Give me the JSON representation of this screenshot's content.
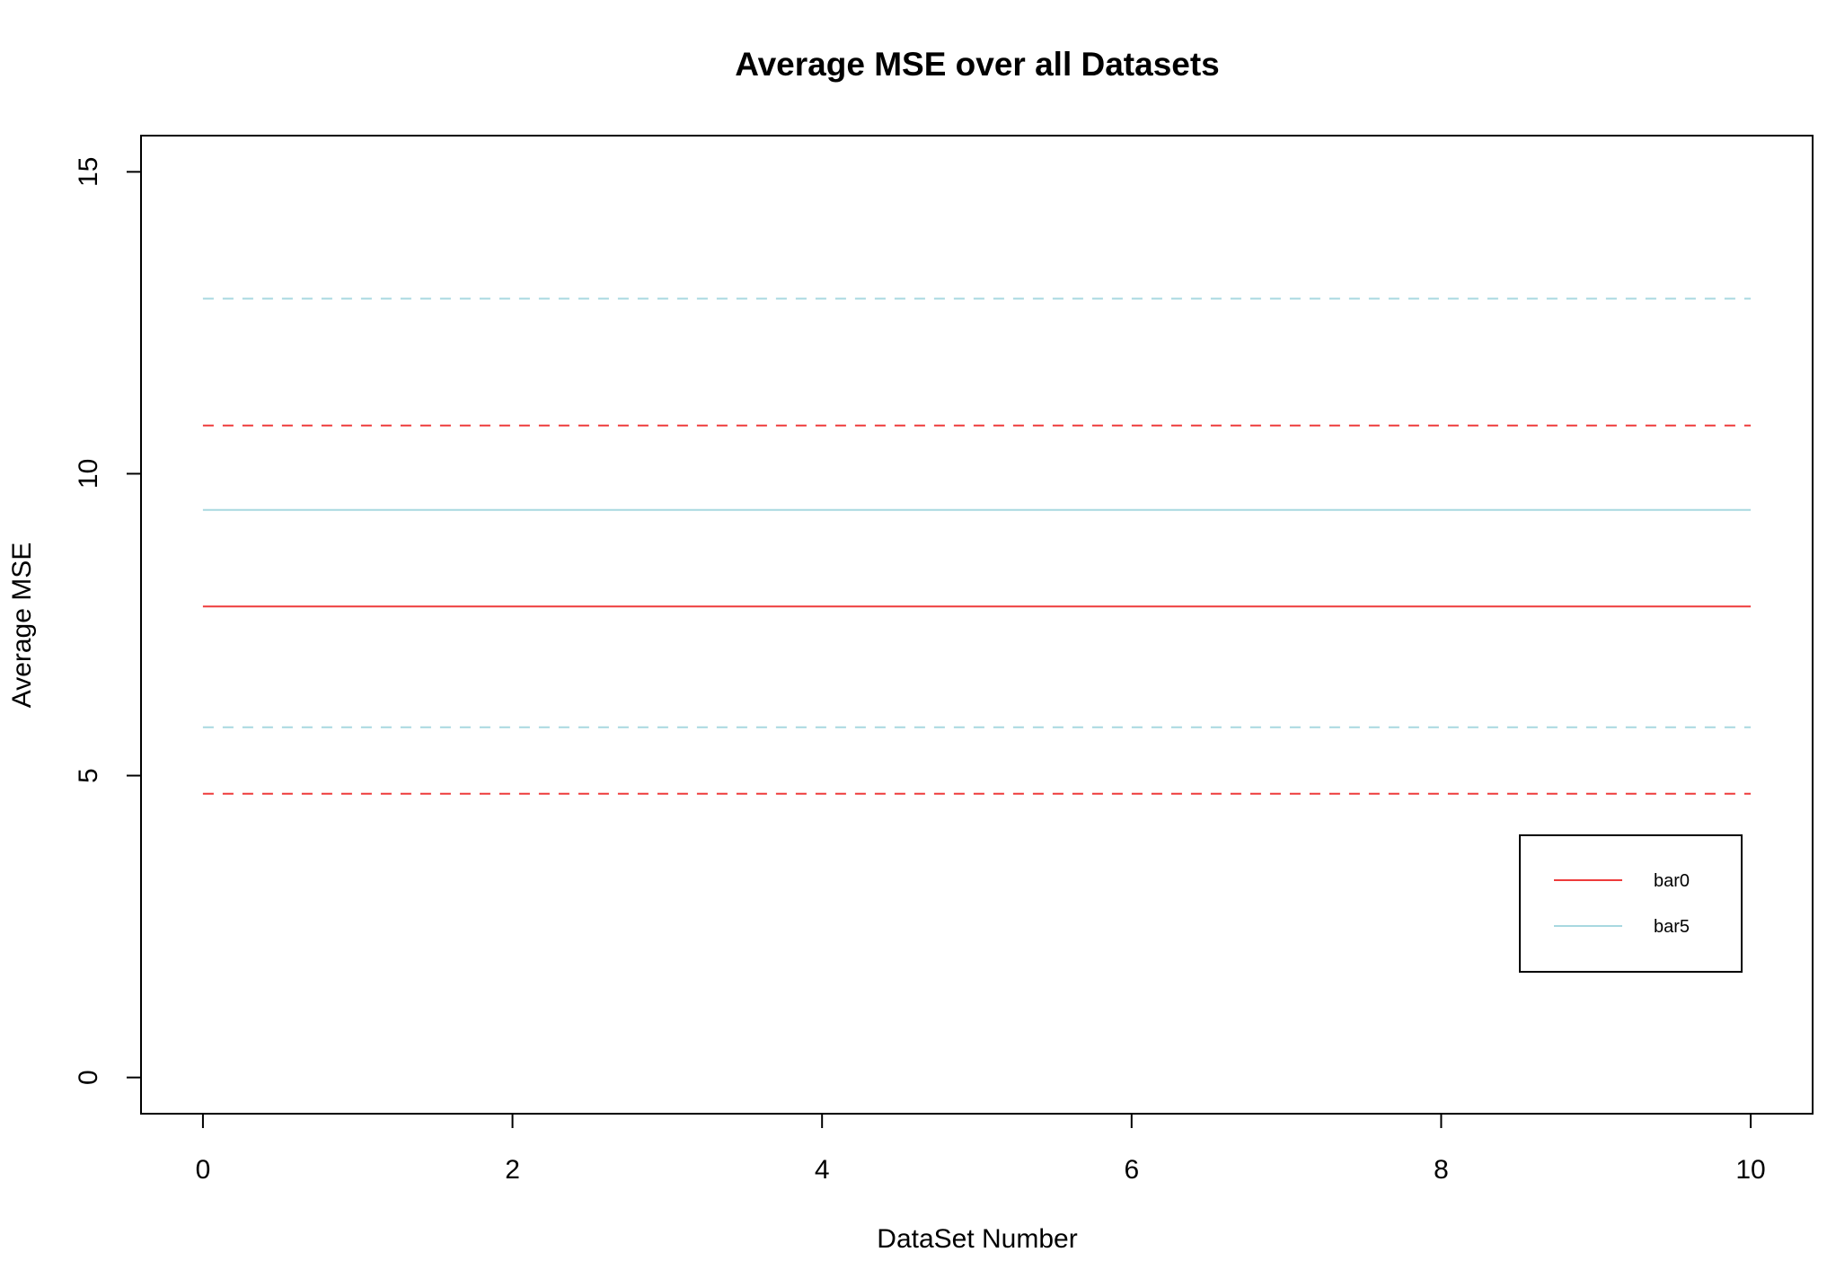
{
  "chart_data": {
    "type": "line",
    "title": "Average MSE over all Datasets",
    "xlabel": "DataSet Number",
    "ylabel": "Average MSE",
    "xlim": [
      -0.4,
      10.4
    ],
    "ylim": [
      -0.6,
      15.6
    ],
    "x_ticks": [
      0,
      2,
      4,
      6,
      8,
      10
    ],
    "y_ticks": [
      0,
      5,
      10,
      15
    ],
    "grid": false,
    "legend_position": "bottom-right",
    "series": [
      {
        "name": "bar0",
        "color": "#ee3b3b",
        "line_style": "solid",
        "x": [
          0,
          10
        ],
        "y": [
          7.8,
          7.8
        ]
      },
      {
        "name": "bar5",
        "color": "#a8d8e0",
        "line_style": "solid",
        "x": [
          0,
          10
        ],
        "y": [
          9.4,
          9.4
        ]
      },
      {
        "color": "#ee3b3b",
        "line_style": "dashed",
        "x": [
          0,
          10
        ],
        "y": [
          10.8,
          10.8
        ]
      },
      {
        "color": "#ee3b3b",
        "line_style": "dashed",
        "x": [
          0,
          10
        ],
        "y": [
          4.7,
          4.7
        ]
      },
      {
        "color": "#a8d8e0",
        "line_style": "dashed",
        "x": [
          0,
          10
        ],
        "y": [
          12.9,
          12.9
        ]
      },
      {
        "color": "#a8d8e0",
        "line_style": "dashed",
        "x": [
          0,
          10
        ],
        "y": [
          5.8,
          5.8
        ]
      }
    ]
  }
}
